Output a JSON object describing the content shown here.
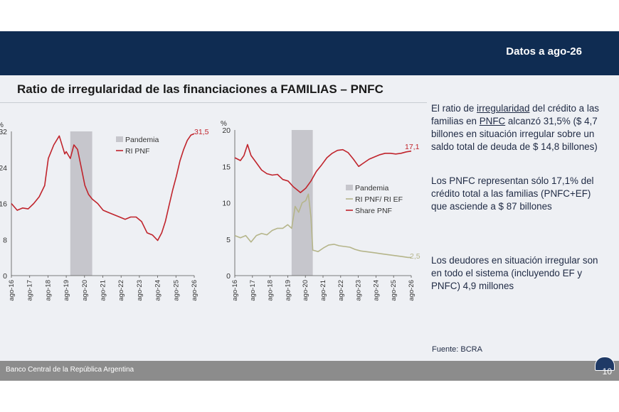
{
  "header": {
    "date_label": "Datos a ago-26"
  },
  "title": "Ratio de irregularidad de las financiaciones a FAMILIAS – PNFC",
  "text": {
    "p1_a": "El ratio de ",
    "p1_u1": "irregularidad",
    "p1_b": " del crédito a las familias en ",
    "p1_u2": "PNFC",
    "p1_c": " alcanzó 31,5% ($ 4,7 billones en situación irregular sobre un saldo total de deuda de $ 14,8 billones)",
    "p2": "Los PNFC representan sólo 17,1% del crédito total a las familias (PNFC+EF) que asciende a $ 87 billones",
    "p3": "Los deudores en situación irregular son en todo el sistema (incluyendo EF y PNFC) 4,9 millones"
  },
  "source": "Fuente: BCRA",
  "footer": {
    "org": "Banco Central de la República Argentina",
    "page": "10"
  },
  "colors": {
    "header": "#0f2c52",
    "red": "#c0242c",
    "olive": "#b5b58a",
    "band": "#c6c6cc"
  },
  "chart_data": [
    {
      "type": "line",
      "ylabel": "%",
      "ylim": [
        0,
        32
      ],
      "yticks": [
        0,
        8,
        16,
        24,
        32
      ],
      "xlim": [
        2016.58,
        2026.58
      ],
      "xticks": [
        "ago-16",
        "ago-17",
        "ago-18",
        "ago-19",
        "ago-20",
        "ago-21",
        "ago-22",
        "ago-23",
        "ago-24",
        "ago-25",
        "ago-26"
      ],
      "band": {
        "name": "Pandemia",
        "from": 2019.8,
        "to": 2021.0
      },
      "legend": [
        "Pandemia",
        "RI PNF"
      ],
      "end_label": "31,5",
      "series": [
        {
          "name": "RI PNF",
          "color": "#c0242c",
          "x": [
            2016.58,
            2016.9,
            2017.2,
            2017.5,
            2017.8,
            2018.1,
            2018.4,
            2018.6,
            2018.9,
            2019.2,
            2019.5,
            2019.58,
            2019.8,
            2020.0,
            2020.2,
            2020.4,
            2020.6,
            2020.8,
            2021.0,
            2021.3,
            2021.6,
            2021.9,
            2022.2,
            2022.5,
            2022.8,
            2023.1,
            2023.4,
            2023.7,
            2024.0,
            2024.3,
            2024.58,
            2024.8,
            2025.0,
            2025.2,
            2025.4,
            2025.6,
            2025.8,
            2026.0,
            2026.2,
            2026.4,
            2026.58
          ],
          "y": [
            16,
            14.5,
            15,
            14.8,
            16,
            17.5,
            20,
            26,
            29,
            31,
            27,
            27.5,
            26,
            29,
            28,
            24,
            20,
            18,
            17,
            16,
            14.5,
            14,
            13.5,
            13,
            12.5,
            13,
            13,
            12,
            9.5,
            9,
            7.8,
            9.5,
            12,
            15.5,
            19,
            22,
            25.5,
            28,
            30,
            31.2,
            31.5
          ]
        }
      ]
    },
    {
      "type": "line",
      "ylabel": "%",
      "ylim": [
        0,
        20
      ],
      "yticks": [
        0,
        5,
        10,
        15,
        20
      ],
      "xlim": [
        2016.58,
        2026.58
      ],
      "xticks": [
        "ago-16",
        "ago-17",
        "ago-18",
        "ago-19",
        "ago-20",
        "ago-21",
        "ago-22",
        "ago-23",
        "ago-24",
        "ago-25",
        "ago-26"
      ],
      "band": {
        "name": "Pandemia",
        "from": 2019.8,
        "to": 2021.0
      },
      "legend": [
        "Pandemia",
        "RI PNF/ RI EF",
        "Share PNF"
      ],
      "end_labels": [
        "17,1",
        "2,5"
      ],
      "series": [
        {
          "name": "Share PNF",
          "color": "#c0242c",
          "x": [
            2016.58,
            2016.9,
            2017.1,
            2017.3,
            2017.5,
            2017.8,
            2018.1,
            2018.4,
            2018.7,
            2019.0,
            2019.3,
            2019.6,
            2019.9,
            2020.1,
            2020.3,
            2020.6,
            2020.9,
            2021.2,
            2021.5,
            2021.8,
            2022.1,
            2022.4,
            2022.7,
            2023.0,
            2023.3,
            2023.6,
            2023.9,
            2024.2,
            2024.5,
            2024.8,
            2025.1,
            2025.4,
            2025.7,
            2026.0,
            2026.3,
            2026.58
          ],
          "y": [
            16.2,
            15.8,
            16.5,
            18,
            16.5,
            15.5,
            14.5,
            14,
            13.8,
            13.9,
            13.2,
            13,
            12.2,
            11.8,
            11.4,
            12,
            13,
            14.3,
            15.2,
            16.2,
            16.8,
            17.2,
            17.3,
            16.9,
            16,
            15,
            15.5,
            16,
            16.3,
            16.6,
            16.8,
            16.8,
            16.7,
            16.8,
            17.0,
            17.1
          ]
        },
        {
          "name": "RI PNF/ RI EF",
          "color": "#b5b58a",
          "x": [
            2016.58,
            2016.9,
            2017.2,
            2017.5,
            2017.8,
            2018.1,
            2018.4,
            2018.7,
            2019.0,
            2019.3,
            2019.58,
            2019.8,
            2020.0,
            2020.2,
            2020.4,
            2020.6,
            2020.75,
            2020.9,
            2021.0,
            2021.3,
            2021.6,
            2021.9,
            2022.2,
            2022.5,
            2022.8,
            2023.1,
            2023.4,
            2023.7,
            2024.0,
            2024.3,
            2024.6,
            2024.9,
            2025.2,
            2025.5,
            2025.8,
            2026.1,
            2026.4,
            2026.58
          ],
          "y": [
            5.5,
            5.2,
            5.5,
            4.6,
            5.5,
            5.8,
            5.6,
            6.2,
            6.5,
            6.5,
            7.0,
            6.5,
            9.5,
            8.7,
            10.0,
            10.3,
            11.2,
            8.0,
            3.5,
            3.3,
            3.8,
            4.2,
            4.3,
            4.1,
            4.0,
            3.9,
            3.6,
            3.4,
            3.3,
            3.2,
            3.1,
            3.0,
            2.9,
            2.8,
            2.7,
            2.6,
            2.5,
            2.5
          ]
        }
      ]
    }
  ]
}
